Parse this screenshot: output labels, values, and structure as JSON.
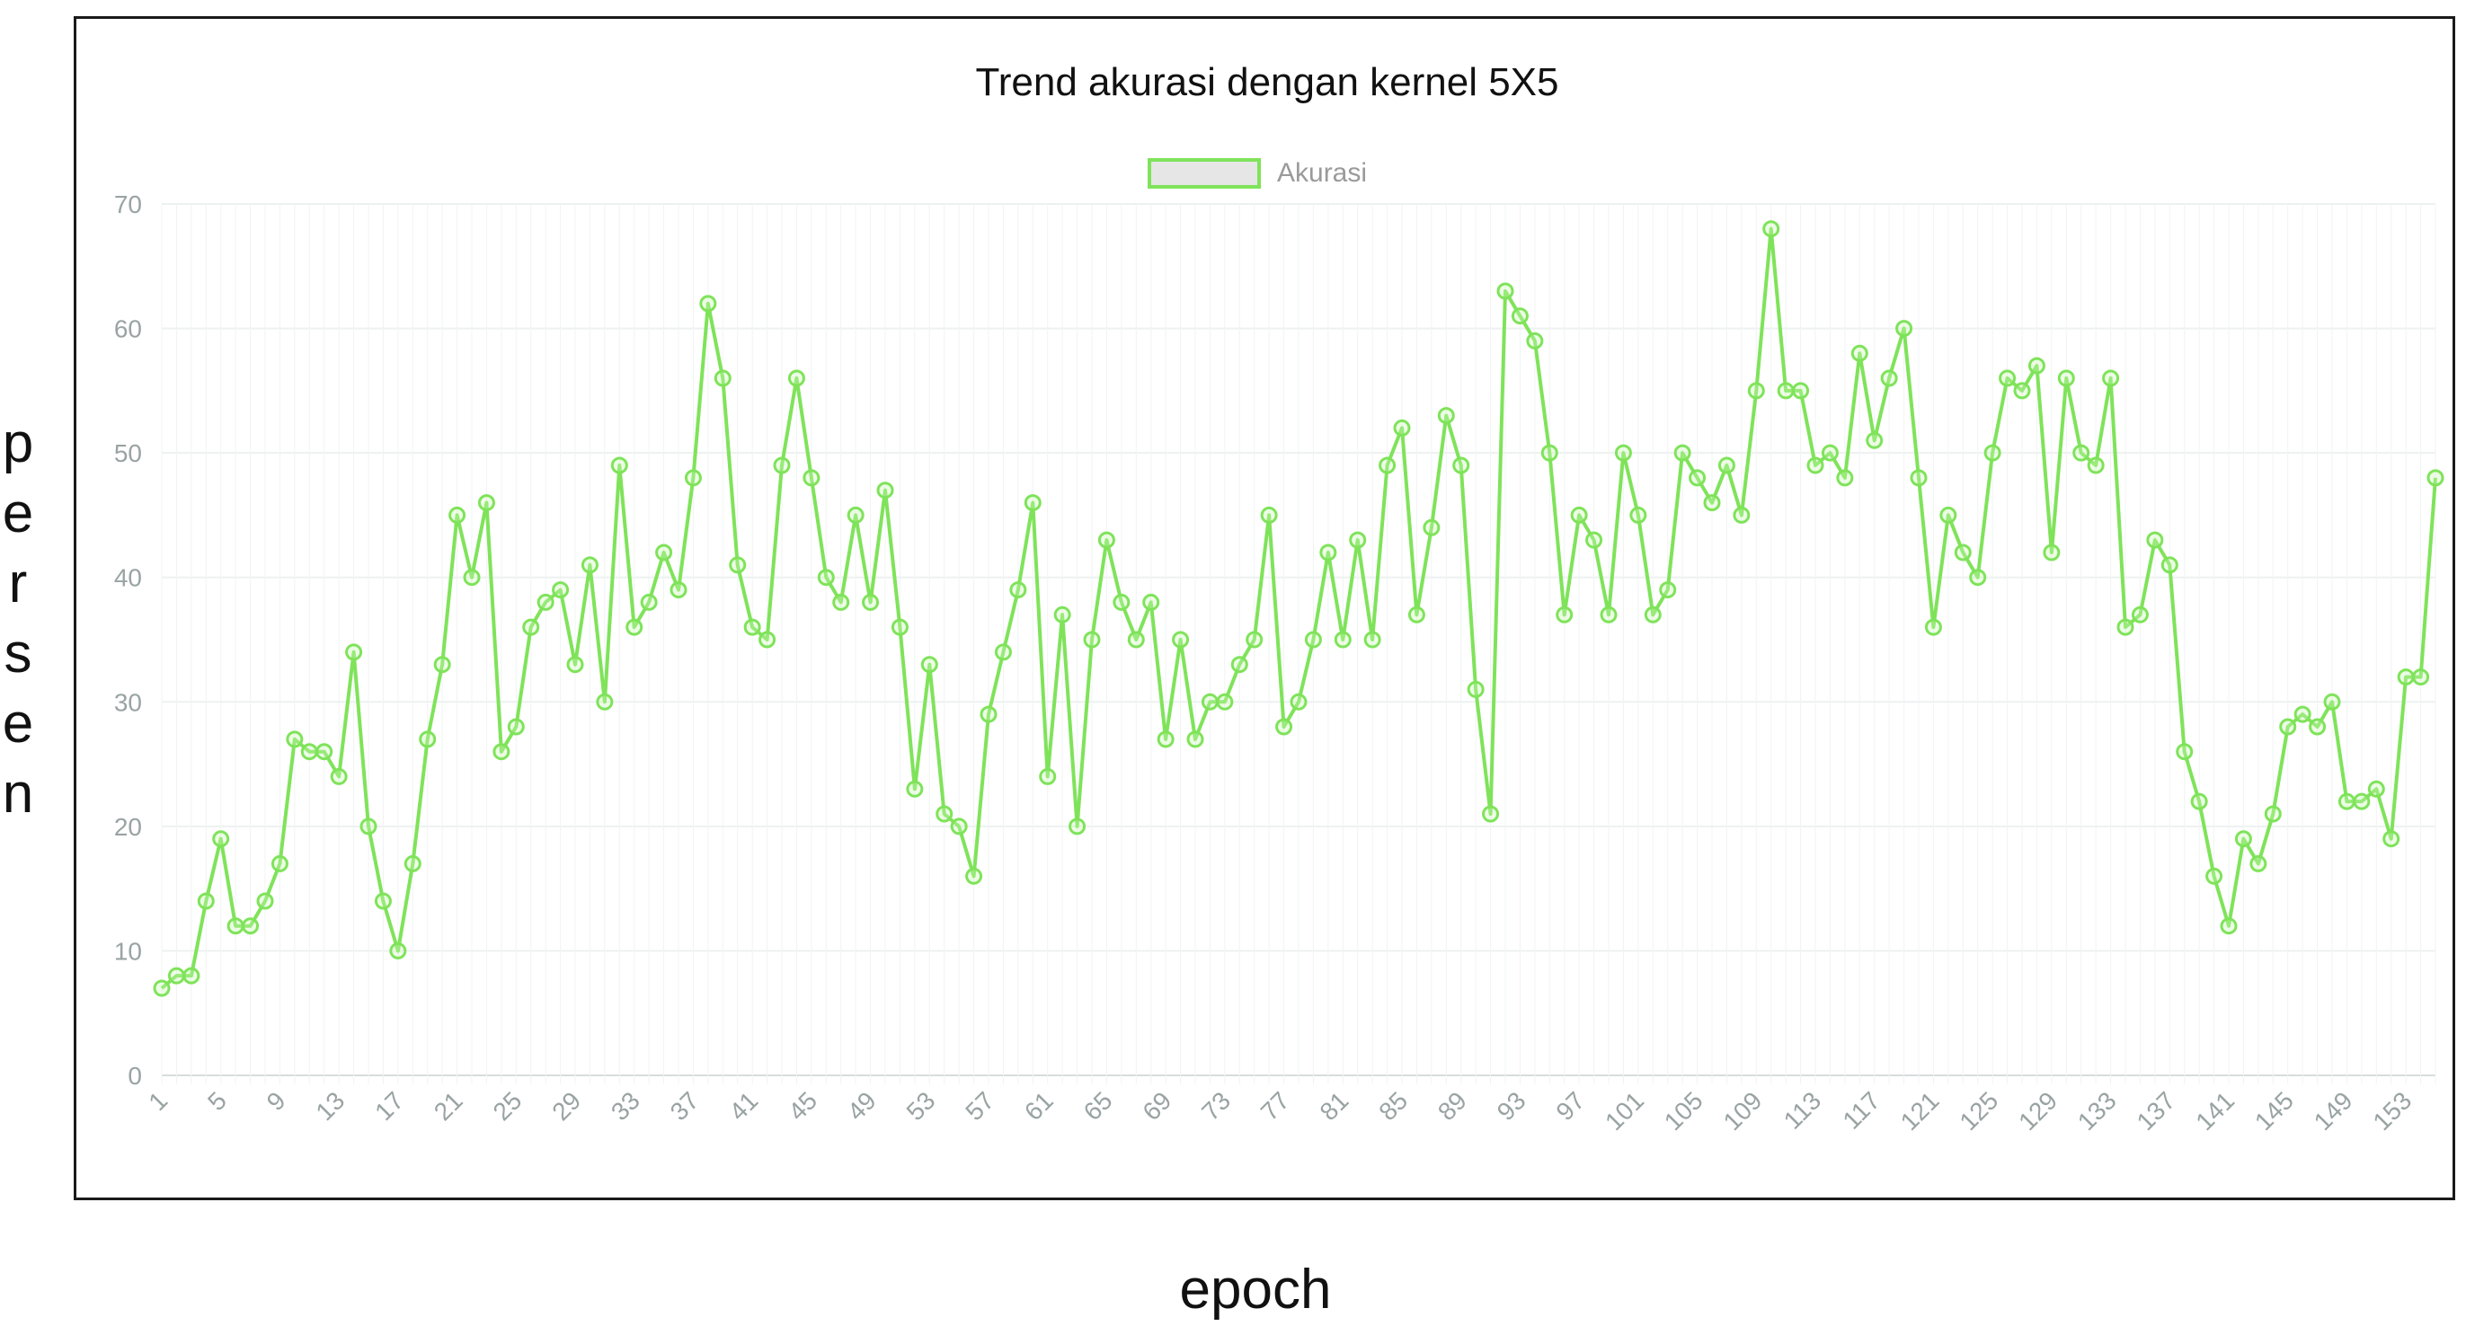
{
  "chart_data": {
    "type": "line",
    "title": "Trend akurasi dengan kernel 5X5",
    "xlabel": "epoch",
    "ylabel": "persen",
    "legend": {
      "position": "top-center",
      "entries": [
        "Akurasi"
      ]
    },
    "grid": true,
    "ylim": [
      0,
      70
    ],
    "yticks": [
      0,
      10,
      20,
      30,
      40,
      50,
      60,
      70
    ],
    "xtick_start": 1,
    "xtick_step": 4,
    "series": [
      {
        "name": "Akurasi",
        "color": "#7fe35a",
        "x_start": 1,
        "values": [
          7,
          8,
          8,
          14,
          19,
          12,
          12,
          14,
          17,
          27,
          26,
          26,
          24,
          34,
          20,
          14,
          10,
          17,
          27,
          33,
          45,
          40,
          46,
          26,
          28,
          36,
          38,
          39,
          33,
          41,
          30,
          49,
          36,
          38,
          42,
          39,
          48,
          62,
          56,
          41,
          36,
          35,
          49,
          56,
          48,
          40,
          38,
          45,
          38,
          47,
          36,
          23,
          33,
          21,
          20,
          16,
          29,
          34,
          39,
          46,
          24,
          37,
          20,
          35,
          43,
          38,
          35,
          38,
          27,
          35,
          27,
          30,
          30,
          33,
          35,
          45,
          28,
          30,
          35,
          42,
          35,
          43,
          35,
          49,
          52,
          37,
          44,
          53,
          49,
          31,
          21,
          63,
          61,
          59,
          50,
          37,
          45,
          43,
          37,
          50,
          45,
          37,
          39,
          50,
          48,
          46,
          49,
          45,
          55,
          68,
          55,
          55,
          49,
          50,
          48,
          58,
          51,
          56,
          60,
          48,
          36,
          45,
          42,
          40,
          50,
          56,
          55,
          57,
          42,
          56,
          50,
          49,
          56,
          36,
          37,
          43,
          41,
          26,
          22,
          16,
          12,
          19,
          17,
          21,
          28,
          29,
          28,
          30,
          22,
          22,
          23,
          19,
          32,
          32,
          48
        ]
      }
    ]
  }
}
